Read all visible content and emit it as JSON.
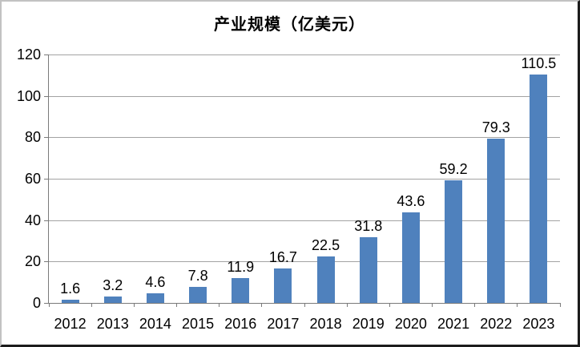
{
  "chart_data": {
    "type": "bar",
    "title": "产业规模（亿美元）",
    "categories": [
      "2012",
      "2013",
      "2014",
      "2015",
      "2016",
      "2017",
      "2018",
      "2019",
      "2020",
      "2021",
      "2022",
      "2023"
    ],
    "values": [
      1.6,
      3.2,
      4.6,
      7.8,
      11.9,
      16.7,
      22.5,
      31.8,
      43.6,
      59.2,
      79.3,
      110.5
    ],
    "value_labels": [
      "1.6",
      "3.2",
      "4.6",
      "7.8",
      "11.9",
      "16.7",
      "22.5",
      "31.8",
      "43.6",
      "59.2",
      "79.3",
      "110.5"
    ],
    "xlabel": "",
    "ylabel": "",
    "ylim": [
      0,
      120
    ],
    "yticks": [
      0,
      20,
      40,
      60,
      80,
      100,
      120
    ],
    "grid": true,
    "legend": "none",
    "colors": {
      "bar": "#4f81bd",
      "gridline": "#a3a3a3",
      "axis": "#7a7a7a",
      "text": "#000000",
      "background": "#ffffff"
    }
  }
}
